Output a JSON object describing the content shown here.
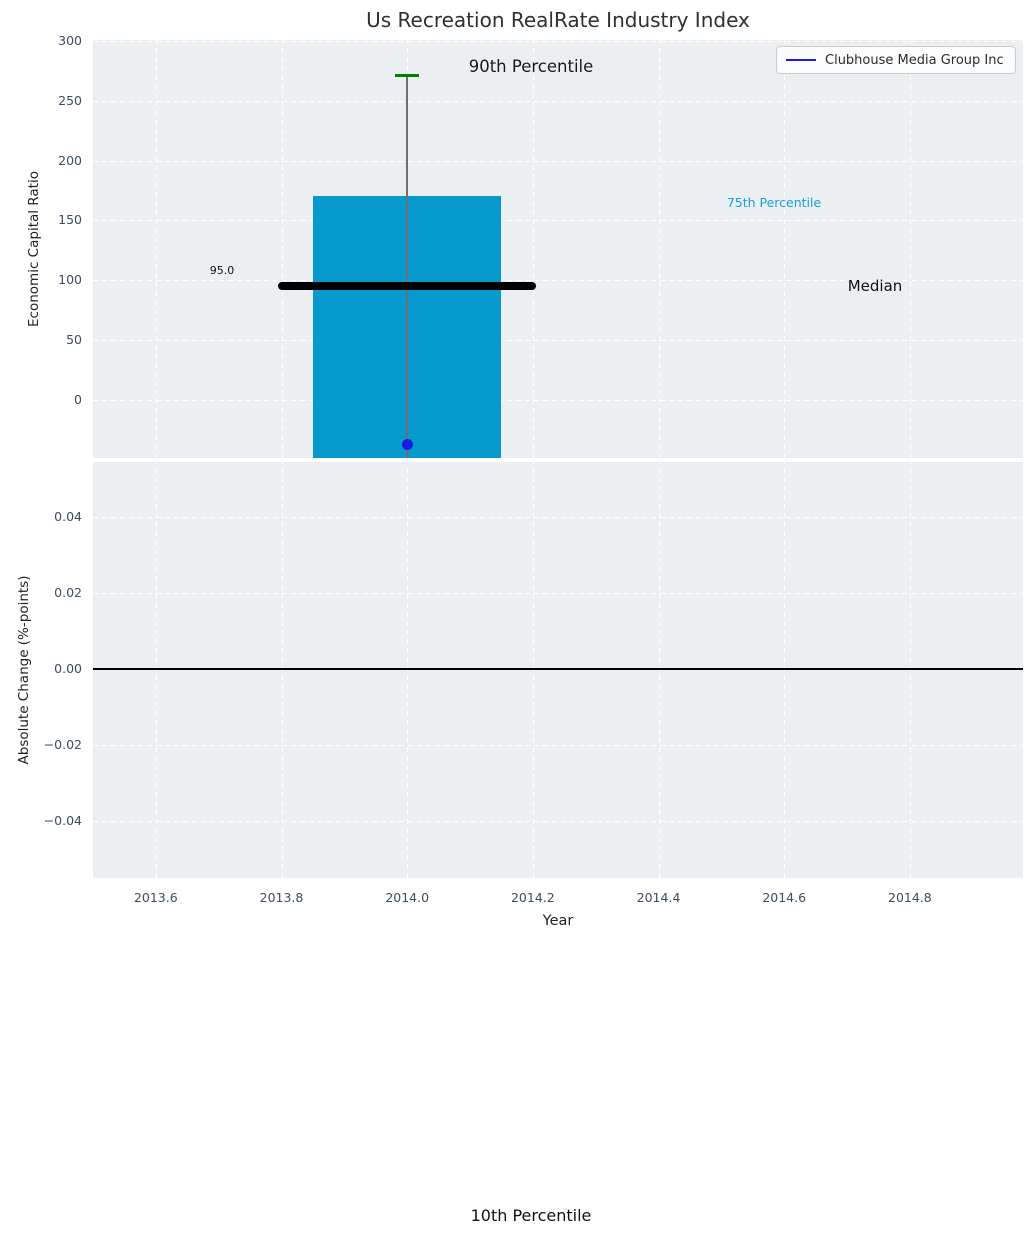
{
  "figure": {
    "title": "Us Recreation RealRate Industry Index"
  },
  "legend": {
    "items": [
      {
        "label": "Clubhouse Media Group Inc",
        "color": "#1a1ae0"
      }
    ]
  },
  "colors": {
    "panel_background": "#eceff1",
    "grid": "#ffffff",
    "tick_text": "#3d4c5e",
    "bar": "#0699ce",
    "median_line": "#000000",
    "p90_cap": "#008000",
    "whisker": "#6f6f6f",
    "company_blue": "#1a1ae0",
    "p75_text": "#18a0d8"
  },
  "top_panel": {
    "ylabel": "Economic Capital Ratio",
    "annotations": {
      "p90_label": "90th Percentile",
      "p75_label": "75th Percentile",
      "median_label": "Median",
      "median_value_label": "95.0",
      "p10_label": "10th Percentile"
    }
  },
  "bottom_panel": {
    "ylabel": "Absolute Change (%-points)",
    "xlabel": "Year"
  },
  "chart_data": [
    {
      "type": "bar",
      "title": "Us Recreation RealRate Industry Index",
      "xlabel": "",
      "ylabel": "Economic Capital Ratio",
      "x": [
        2014.0
      ],
      "series": [
        {
          "name": "90th Percentile",
          "values": [
            271
          ],
          "marker": "green-cap"
        },
        {
          "name": "75th Percentile",
          "values": [
            170
          ],
          "note": "top of bar"
        },
        {
          "name": "Median",
          "values": [
            95.0
          ],
          "marker": "thick-black-line"
        },
        {
          "name": "10th Percentile",
          "values": [
            -60
          ],
          "note": "bar bottom extends below visible axis; label drawn at figure bottom"
        },
        {
          "name": "Clubhouse Media Group Inc",
          "values": [
            -37.5
          ],
          "marker": "blue-dot"
        }
      ],
      "bar_width": 0.3,
      "median_line_halfwidth": 0.205,
      "xlim": [
        2013.5,
        2014.98
      ],
      "ylim": [
        -48.4,
        300.7
      ],
      "yticks": [
        0,
        50,
        100,
        150,
        200,
        250,
        300
      ],
      "grid": true,
      "legend_position": "upper right"
    },
    {
      "type": "line",
      "title": "",
      "xlabel": "Year",
      "ylabel": "Absolute Change (%-points)",
      "series": [],
      "zero_line": 0.0,
      "xlim": [
        2013.5,
        2014.98
      ],
      "ylim": [
        -0.055,
        0.0545
      ],
      "yticks": [
        0.04,
        0.02,
        0.0,
        -0.02,
        -0.04
      ],
      "xticks": [
        2013.6,
        2013.8,
        2014.0,
        2014.2,
        2014.4,
        2014.6,
        2014.8
      ],
      "grid": true
    }
  ]
}
